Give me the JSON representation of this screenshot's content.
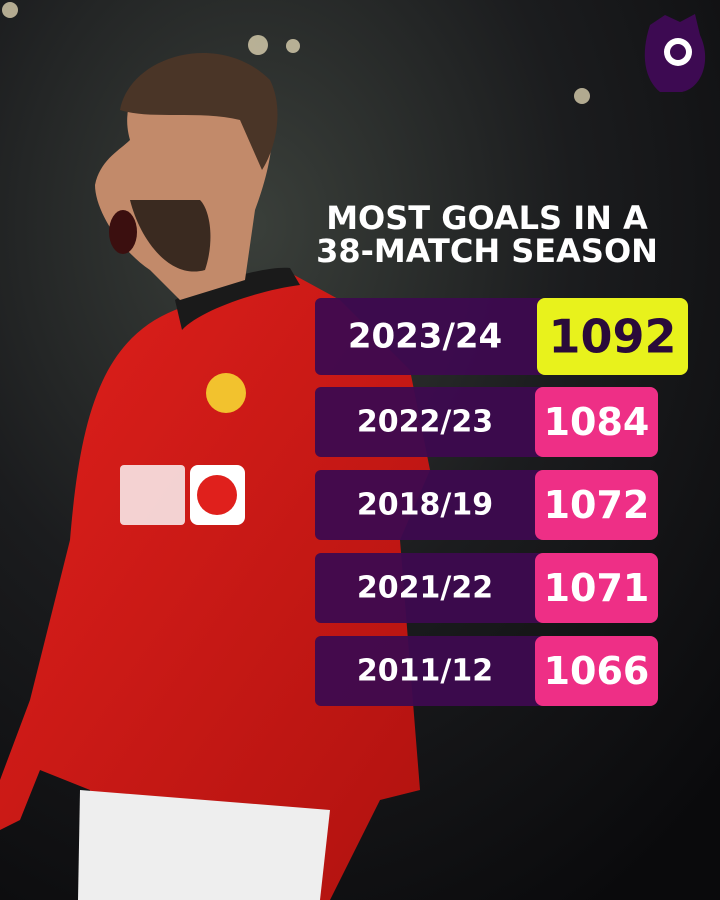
{
  "title_lines": [
    "MOST GOALS IN A",
    "38-MATCH SEASON"
  ],
  "table": {
    "rows": [
      {
        "season": "2023/24",
        "goals": 1092
      },
      {
        "season": "2022/23",
        "goals": 1084
      },
      {
        "season": "2018/19",
        "goals": 1072
      },
      {
        "season": "2021/22",
        "goals": 1071
      },
      {
        "season": "2011/12",
        "goals": 1066
      }
    ]
  }
}
